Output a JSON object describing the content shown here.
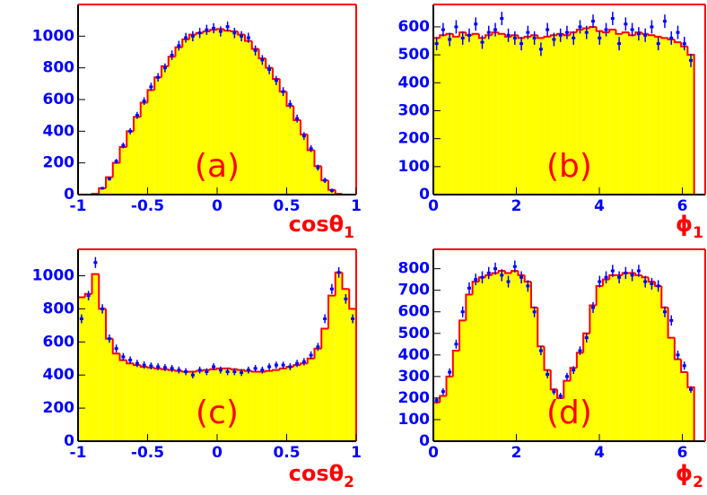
{
  "chart_data": [
    {
      "type": "histogram",
      "annotation": "(a)",
      "xlabel": "cosθ",
      "xlabel_sub": "1",
      "xlim": [
        -1,
        1
      ],
      "ylim": [
        0,
        1200
      ],
      "xticks": [
        -1,
        -0.5,
        0,
        0.5,
        1
      ],
      "yticks": [
        0,
        200,
        400,
        600,
        800,
        1000
      ],
      "fill_color": "#ffff00",
      "line_color": "#ff0000",
      "point_color": "#0000ff",
      "bins": [
        -1,
        -0.95,
        -0.9,
        -0.85,
        -0.8,
        -0.75,
        -0.7,
        -0.65,
        -0.6,
        -0.55,
        -0.5,
        -0.45,
        -0.4,
        -0.35,
        -0.3,
        -0.25,
        -0.2,
        -0.15,
        -0.1,
        -0.05,
        0,
        0.05,
        0.1,
        0.15,
        0.2,
        0.25,
        0.3,
        0.35,
        0.4,
        0.45,
        0.5,
        0.55,
        0.6,
        0.65,
        0.7,
        0.75,
        0.8,
        0.85,
        0.9,
        0.95,
        1
      ],
      "values": [
        0,
        0,
        5,
        40,
        110,
        200,
        300,
        400,
        490,
        580,
        660,
        740,
        810,
        870,
        930,
        980,
        1010,
        1020,
        1030,
        1040,
        1045,
        1035,
        1030,
        1010,
        970,
        920,
        860,
        800,
        730,
        650,
        560,
        470,
        380,
        280,
        180,
        90,
        30,
        5,
        0,
        0
      ],
      "data_values": [
        null,
        null,
        null,
        40,
        100,
        210,
        310,
        400,
        500,
        590,
        680,
        740,
        800,
        880,
        940,
        990,
        1000,
        1020,
        1040,
        1050,
        1030,
        1060,
        1020,
        1000,
        990,
        910,
        850,
        790,
        720,
        650,
        570,
        480,
        370,
        290,
        170,
        90,
        25,
        null,
        null,
        null
      ],
      "data_errors": [
        null,
        null,
        null,
        8,
        12,
        15,
        18,
        20,
        22,
        24,
        26,
        27,
        28,
        30,
        31,
        31,
        32,
        32,
        32,
        32,
        32,
        32,
        33,
        32,
        32,
        32,
        31,
        30,
        29,
        28,
        27,
        25,
        24,
        22,
        19,
        17,
        13,
        null,
        null,
        null
      ]
    },
    {
      "type": "histogram",
      "annotation": "(b)",
      "xlabel": "ϕ",
      "xlabel_sub": "1",
      "xlim": [
        0,
        6.55
      ],
      "ylim": [
        0,
        680
      ],
      "xticks": [
        0,
        2,
        4,
        6
      ],
      "yticks": [
        0,
        100,
        200,
        300,
        400,
        500,
        600
      ],
      "fill_color": "#ffff00",
      "line_color": "#ff0000",
      "point_color": "#0000ff",
      "bins": [
        0,
        0.1571,
        0.3142,
        0.4712,
        0.6283,
        0.7854,
        0.9425,
        1.0996,
        1.2566,
        1.4137,
        1.5708,
        1.7279,
        1.885,
        2.042,
        2.1991,
        2.3562,
        2.5133,
        2.6704,
        2.8274,
        2.9845,
        3.1416,
        3.2987,
        3.4558,
        3.6128,
        3.7699,
        3.927,
        4.0841,
        4.2412,
        4.3982,
        4.5553,
        4.7124,
        4.8695,
        5.0265,
        5.1836,
        5.3407,
        5.4978,
        5.6549,
        5.8119,
        5.969,
        6.1261,
        6.2832
      ],
      "values": [
        560,
        570,
        575,
        565,
        580,
        570,
        575,
        560,
        570,
        580,
        575,
        565,
        570,
        560,
        565,
        570,
        560,
        565,
        570,
        575,
        570,
        580,
        590,
        595,
        600,
        585,
        580,
        590,
        575,
        580,
        570,
        580,
        575,
        570,
        565,
        560,
        555,
        545,
        530,
        500
      ],
      "data_values": [
        540,
        590,
        555,
        600,
        560,
        570,
        610,
        545,
        580,
        590,
        630,
        570,
        560,
        540,
        580,
        560,
        520,
        590,
        555,
        570,
        580,
        560,
        600,
        580,
        620,
        560,
        590,
        630,
        540,
        610,
        590,
        575,
        570,
        600,
        540,
        620,
        560,
        580,
        540,
        480
      ],
      "data_errors": [
        24,
        24,
        24,
        24,
        24,
        24,
        24,
        24,
        24,
        24,
        24,
        24,
        24,
        24,
        24,
        24,
        24,
        24,
        24,
        24,
        24,
        24,
        24,
        24,
        24,
        24,
        24,
        24,
        24,
        24,
        24,
        24,
        24,
        24,
        24,
        24,
        24,
        24,
        24,
        24
      ]
    },
    {
      "type": "histogram",
      "annotation": "(c)",
      "xlabel": "cosθ",
      "xlabel_sub": "2",
      "xlim": [
        -1,
        1
      ],
      "ylim": [
        0,
        1160
      ],
      "xticks": [
        -1,
        -0.5,
        0,
        0.5,
        1
      ],
      "yticks": [
        0,
        200,
        400,
        600,
        800,
        1000
      ],
      "fill_color": "#ffff00",
      "line_color": "#ff0000",
      "point_color": "#0000ff",
      "bins": [
        -1,
        -0.95,
        -0.9,
        -0.85,
        -0.8,
        -0.75,
        -0.7,
        -0.65,
        -0.6,
        -0.55,
        -0.5,
        -0.45,
        -0.4,
        -0.35,
        -0.3,
        -0.25,
        -0.2,
        -0.15,
        -0.1,
        -0.05,
        0,
        0.05,
        0.1,
        0.15,
        0.2,
        0.25,
        0.3,
        0.35,
        0.4,
        0.45,
        0.5,
        0.55,
        0.6,
        0.65,
        0.7,
        0.75,
        0.8,
        0.85,
        0.9,
        0.95,
        1
      ],
      "values": [
        870,
        890,
        1010,
        800,
        620,
        530,
        490,
        470,
        460,
        450,
        445,
        440,
        435,
        430,
        425,
        420,
        420,
        425,
        430,
        435,
        440,
        440,
        435,
        430,
        425,
        420,
        420,
        425,
        430,
        440,
        450,
        460,
        470,
        500,
        560,
        680,
        880,
        1020,
        920,
        800
      ],
      "data_values": [
        740,
        880,
        1080,
        800,
        620,
        560,
        510,
        490,
        470,
        460,
        455,
        450,
        445,
        440,
        430,
        420,
        400,
        430,
        420,
        450,
        430,
        420,
        420,
        415,
        430,
        440,
        430,
        450,
        460,
        460,
        450,
        470,
        480,
        520,
        570,
        740,
        920,
        1020,
        860,
        740
      ],
      "data_errors": [
        27,
        29,
        33,
        28,
        25,
        24,
        23,
        22,
        22,
        22,
        21,
        21,
        21,
        21,
        21,
        21,
        20,
        21,
        21,
        21,
        21,
        21,
        21,
        21,
        21,
        21,
        21,
        21,
        21,
        21,
        21,
        22,
        22,
        23,
        24,
        27,
        30,
        32,
        29,
        27
      ]
    },
    {
      "type": "histogram",
      "annotation": "(d)",
      "xlabel": "ϕ",
      "xlabel_sub": "2",
      "xlim": [
        0,
        6.55
      ],
      "ylim": [
        0,
        890
      ],
      "xticks": [
        0,
        2,
        4,
        6
      ],
      "yticks": [
        0,
        100,
        200,
        300,
        400,
        500,
        600,
        700,
        800
      ],
      "fill_color": "#ffff00",
      "line_color": "#ff0000",
      "point_color": "#0000ff",
      "bins": [
        0,
        0.1571,
        0.3142,
        0.4712,
        0.6283,
        0.7854,
        0.9425,
        1.0996,
        1.2566,
        1.4137,
        1.5708,
        1.7279,
        1.885,
        2.042,
        2.1991,
        2.3562,
        2.5133,
        2.6704,
        2.8274,
        2.9845,
        3.1416,
        3.2987,
        3.4558,
        3.6128,
        3.7699,
        3.927,
        4.0841,
        4.2412,
        4.3982,
        4.5553,
        4.7124,
        4.8695,
        5.0265,
        5.1836,
        5.3407,
        5.4978,
        5.6549,
        5.8119,
        5.969,
        6.1261,
        6.2832
      ],
      "values": [
        180,
        210,
        300,
        420,
        560,
        680,
        740,
        760,
        770,
        780,
        790,
        780,
        790,
        770,
        740,
        620,
        440,
        330,
        240,
        200,
        280,
        340,
        410,
        500,
        630,
        720,
        750,
        770,
        770,
        780,
        780,
        770,
        760,
        740,
        720,
        620,
        480,
        380,
        320,
        250
      ],
      "data_values": [
        190,
        230,
        320,
        450,
        600,
        710,
        750,
        760,
        780,
        800,
        770,
        740,
        810,
        760,
        720,
        600,
        420,
        310,
        230,
        210,
        300,
        330,
        420,
        480,
        620,
        740,
        760,
        790,
        760,
        780,
        770,
        790,
        740,
        730,
        720,
        600,
        560,
        400,
        350,
        240
      ],
      "data_errors": [
        14,
        15,
        18,
        21,
        25,
        27,
        27,
        28,
        28,
        28,
        28,
        27,
        28,
        28,
        27,
        25,
        21,
        18,
        15,
        14,
        17,
        18,
        20,
        22,
        25,
        27,
        28,
        28,
        28,
        28,
        28,
        28,
        27,
        27,
        27,
        25,
        24,
        20,
        19,
        15
      ]
    }
  ]
}
